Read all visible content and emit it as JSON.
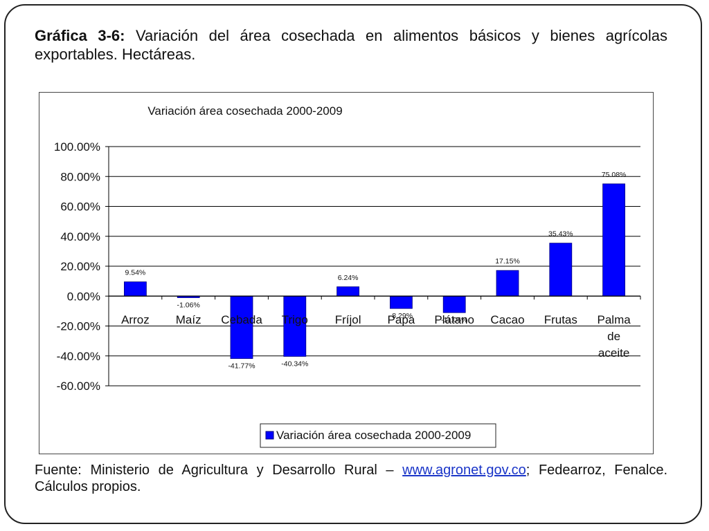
{
  "caption": {
    "label": "Gráfica  3-6:",
    "text": "Variación del área cosechada en alimentos básicos y bienes agrícolas exportables. Hectáreas."
  },
  "source": {
    "prefix": "Fuente: Ministerio de Agricultura y Desarrollo Rural – ",
    "link": "www.agronet.gov.co",
    "suffix": "; Fedearroz, Fenalce. Cálculos propios."
  },
  "colors": {
    "bar": "#0000ff",
    "bar_edge": "#000080",
    "grid": "#000000"
  },
  "chart_data": {
    "type": "bar",
    "title": "Variación área cosechada 2000-2009",
    "categories": [
      "Arroz",
      "Maíz",
      "Cebada",
      "Trigo",
      "Fríjol",
      "Papa",
      "Plátano",
      "Cacao",
      "Frutas",
      "Palma de aceite"
    ],
    "category_lines": [
      [
        "Arroz"
      ],
      [
        "Maíz"
      ],
      [
        "Cebada"
      ],
      [
        "Trigo"
      ],
      [
        "Fríjol"
      ],
      [
        "Papa"
      ],
      [
        "Plátano"
      ],
      [
        "Cacao"
      ],
      [
        "Frutas"
      ],
      [
        "Palma",
        "de",
        "aceite"
      ]
    ],
    "series": [
      {
        "name": "Variación área cosechada 2000-2009",
        "values": [
          9.54,
          -1.06,
          -41.77,
          -40.34,
          6.24,
          -8.29,
          -11.06,
          17.15,
          35.43,
          75.08
        ],
        "labels": [
          "9.54%",
          "-1.06%",
          "-41.77%",
          "-40.34%",
          "6.24%",
          "-8.29%",
          "-11.06%",
          "17.15%",
          "35.43%",
          "75.08%"
        ]
      }
    ],
    "yticks": [
      "100.00%",
      "80.00%",
      "60.00%",
      "40.00%",
      "20.00%",
      "0.00%",
      "-20.00%",
      "-40.00%",
      "-60.00%"
    ],
    "ylim": [
      -60,
      100
    ],
    "ytick_step": 20,
    "grid": true,
    "legend": "bottom",
    "xlabel": "",
    "ylabel": ""
  }
}
